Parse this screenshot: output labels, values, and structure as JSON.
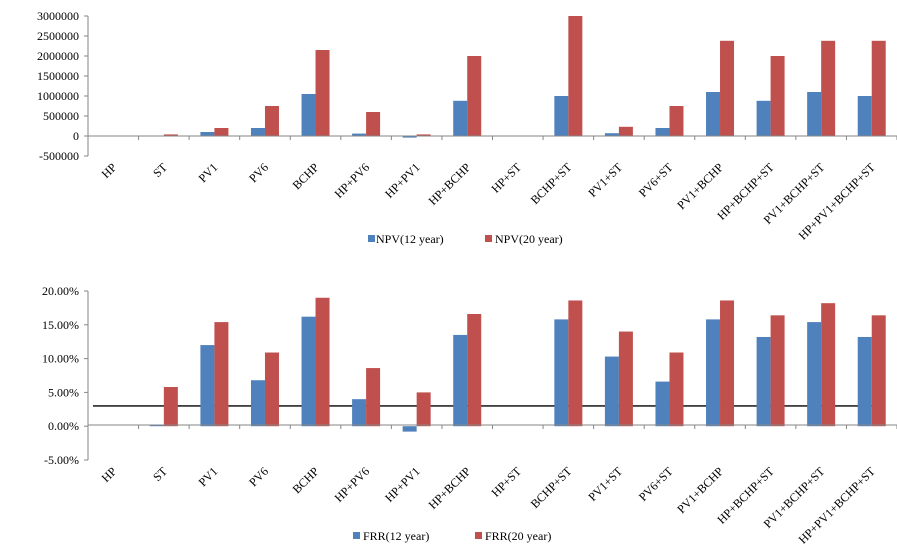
{
  "chart_data": [
    {
      "type": "bar",
      "title": "",
      "xlabel": "",
      "ylabel": "",
      "categories": [
        "HP",
        "ST",
        "PV1",
        "PV6",
        "BCHP",
        "HP+PV6",
        "HP+PV1",
        "HP+BCHP",
        "HP+ST",
        "BCHP+ST",
        "PV1+ST",
        "PV6+ST",
        "PV1+BCHP",
        "HP+BCHP+ST",
        "PV1+BCHP+ST",
        "HP+PV1+BCHP+ST"
      ],
      "series": [
        {
          "name": "NPV(12 year)",
          "color": "#4f81bd",
          "values": [
            0,
            0,
            100000,
            200000,
            1050000,
            60000,
            -40000,
            880000,
            0,
            1000000,
            70000,
            200000,
            1100000,
            880000,
            1100000,
            1000000
          ]
        },
        {
          "name": "NPV(20 year)",
          "color": "#c0504d",
          "values": [
            0,
            40000,
            200000,
            750000,
            2150000,
            600000,
            40000,
            2000000,
            0,
            3000000,
            230000,
            750000,
            2380000,
            2000000,
            2380000,
            2380000
          ]
        }
      ],
      "ylim": [
        -500000,
        3000000
      ],
      "yticks": [
        "3000000",
        "2500000",
        "2000000",
        "1500000",
        "1000000",
        "500000",
        "0",
        "-500000"
      ],
      "grid": false,
      "legend": "bottom",
      "annotations": []
    },
    {
      "type": "bar",
      "title": "",
      "xlabel": "",
      "ylabel": "",
      "categories": [
        "HP",
        "ST",
        "PV1",
        "PV6",
        "BCHP",
        "HP+PV6",
        "HP+PV1",
        "HP+BCHP",
        "HP+ST",
        "BCHP+ST",
        "PV1+ST",
        "PV6+ST",
        "PV1+BCHP",
        "HP+BCHP+ST",
        "PV1+BCHP+ST",
        "HP+PV1+BCHP+ST"
      ],
      "series": [
        {
          "name": "FRR(12 year)",
          "color": "#4f81bd",
          "values": [
            0,
            0.2,
            12.0,
            6.8,
            16.2,
            4.0,
            -0.8,
            13.5,
            0,
            15.8,
            10.3,
            6.6,
            15.8,
            13.2,
            15.4,
            13.2
          ]
        },
        {
          "name": "FRR(20 year)",
          "color": "#c0504d",
          "values": [
            0,
            5.8,
            15.4,
            10.9,
            19.0,
            8.6,
            5.0,
            16.6,
            0,
            18.6,
            14.0,
            10.9,
            18.6,
            16.4,
            18.2,
            16.4
          ]
        }
      ],
      "ylim": [
        -5,
        20
      ],
      "yticks": [
        "20.00%",
        "15.00%",
        "10.00%",
        "5.00%",
        "0.00%",
        "-5.00%"
      ],
      "reference_line": 3.0,
      "grid": false,
      "legend": "bottom",
      "annotations": []
    }
  ]
}
